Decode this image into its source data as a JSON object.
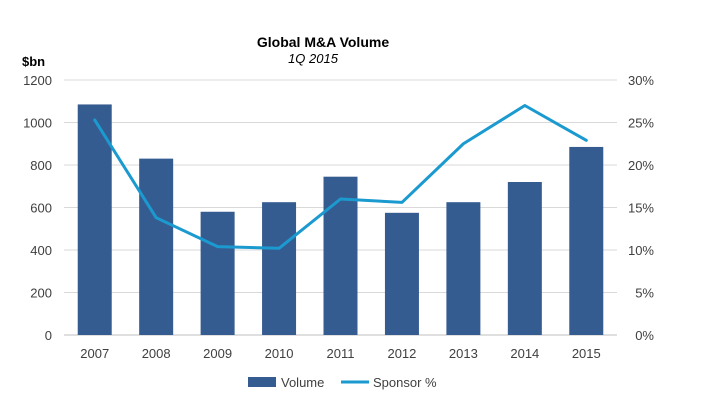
{
  "chart_data": {
    "type": "bar",
    "title": "Global M&A Volume",
    "subtitle": "1Q 2015",
    "ylabel": "$bn",
    "xlabel": "",
    "categories": [
      "2007",
      "2008",
      "2009",
      "2010",
      "2011",
      "2012",
      "2013",
      "2014",
      "2015"
    ],
    "ylim": [
      0,
      1200
    ],
    "y_ticks": [
      "0",
      "200",
      "400",
      "600",
      "800",
      "1000",
      "1200"
    ],
    "y2lim": [
      0,
      30
    ],
    "y2_ticks": [
      "0%",
      "5%",
      "10%",
      "15%",
      "20%",
      "25%",
      "30%"
    ],
    "grid": true,
    "legend_position": "bottom",
    "series": [
      {
        "name": "Volume",
        "type": "bar",
        "axis": "left",
        "color": "#355C91",
        "values": [
          1085,
          830,
          580,
          625,
          745,
          575,
          625,
          720,
          885
        ]
      },
      {
        "name": "Sponsor %",
        "type": "line",
        "axis": "right",
        "color": "#1B9AD0",
        "values": [
          25.3,
          13.8,
          10.4,
          10.2,
          16.0,
          15.6,
          22.5,
          27.0,
          22.9
        ]
      }
    ]
  }
}
